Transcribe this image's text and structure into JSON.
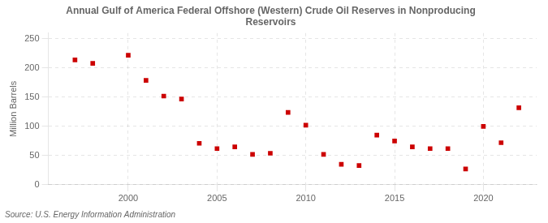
{
  "chart_data": {
    "type": "scatter",
    "title": "Annual Gulf of America Federal Offshore (Western) Crude Oil Reserves in Nonproducing\nReservoirs",
    "ylabel": "Million Barrels",
    "annotations": [
      "Source: U.S. Energy Information Administration"
    ],
    "x": [
      1997,
      1998,
      2000,
      2001,
      2002,
      2003,
      2004,
      2005,
      2006,
      2007,
      2008,
      2009,
      2010,
      2011,
      2012,
      2013,
      2014,
      2015,
      2016,
      2017,
      2018,
      2019,
      2020,
      2021,
      2022
    ],
    "values": [
      214,
      208,
      222,
      179,
      152,
      147,
      71,
      62,
      65,
      52,
      54,
      124,
      102,
      52,
      35,
      33,
      85,
      75,
      65,
      62,
      62,
      27,
      100,
      72,
      132
    ],
    "color": "#cc0000",
    "marker": "square",
    "xlim": [
      1995.5,
      2023.0
    ],
    "ylim": [
      0,
      260
    ],
    "xticks": [
      2000,
      2005,
      2010,
      2015,
      2020
    ],
    "yticks": [
      0,
      50,
      100,
      150,
      200,
      250
    ],
    "grid": true
  }
}
